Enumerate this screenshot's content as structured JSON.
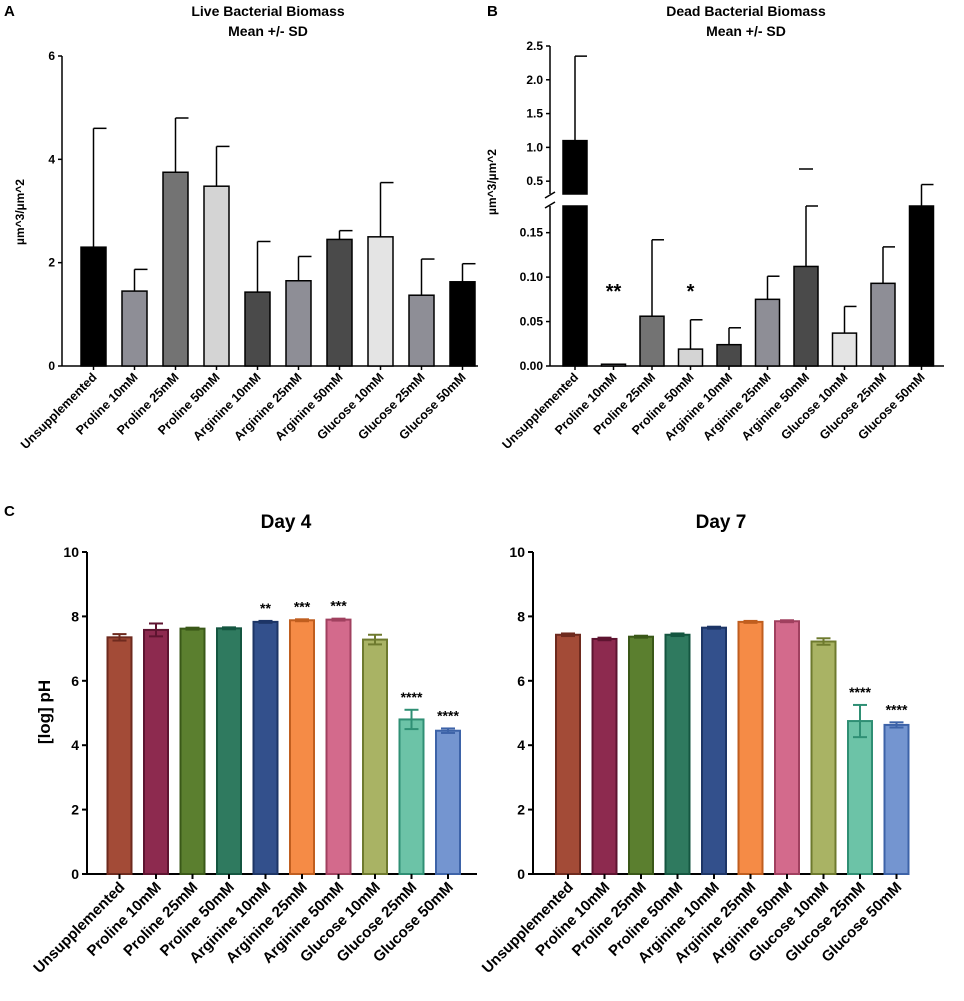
{
  "panels": {
    "A": {
      "letter": "A",
      "title_line1": "Live Bacterial Biomass",
      "title_line2": "Mean +/- SD",
      "ylabel": "µm^3/µm^2"
    },
    "B": {
      "letter": "B",
      "title_line1": "Dead Bacterial Biomass",
      "title_line2": "Mean +/- SD",
      "ylabel": "µm^3/µm^2"
    },
    "C": {
      "letter": "C",
      "ylabel": "[log] pH"
    }
  },
  "chart_data": [
    {
      "id": "A",
      "type": "bar",
      "title": "Live Bacterial Biomass Mean +/- SD",
      "ylabel": "µm^3/µm^2",
      "ylim": [
        0,
        6
      ],
      "yticks": [
        "0",
        "2",
        "4",
        "6"
      ],
      "categories": [
        "Unsupplemented",
        "Proline 10mM",
        "Proline 25mM",
        "Proline 50mM",
        "Arginine 10mM",
        "Arginine 25mM",
        "Arginine 50mM",
        "Glucose 10mM",
        "Glucose 25mM",
        "Glucose 50mM"
      ],
      "values": [
        2.3,
        1.45,
        3.75,
        3.48,
        1.43,
        1.65,
        2.45,
        2.5,
        1.37,
        1.63
      ],
      "errors": [
        2.3,
        0.42,
        1.05,
        0.77,
        0.98,
        0.47,
        0.17,
        1.05,
        0.7,
        0.35
      ],
      "colors": [
        "#000000",
        "#8e8e96",
        "#737373",
        "#d4d4d4",
        "#4a4a4a",
        "#8e8e96",
        "#4a4a4a",
        "#e4e4e4",
        "#8e8e96",
        "#000000"
      ]
    },
    {
      "id": "B",
      "type": "bar",
      "title": "Dead Bacterial Biomass Mean +/- SD",
      "ylabel": "µm^3/µm^2",
      "ylim_lower": [
        0,
        0.18
      ],
      "ylim_upper": [
        0.5,
        2.5
      ],
      "yticks_lower": [
        "0.00",
        "0.05",
        "0.10",
        "0.15"
      ],
      "yticks_upper": [
        "0.5",
        "1.0",
        "1.5",
        "2.0",
        "2.5"
      ],
      "categories": [
        "Unsupplemented",
        "Proline 10mM",
        "Proline 25mM",
        "Proline 50mM",
        "Arginine 10mM",
        "Arginine 25mM",
        "Arginine 50mM",
        "Glucose 10mM",
        "Glucose 25mM",
        "Glucose 50mM"
      ],
      "values": [
        1.1,
        0.002,
        0.056,
        0.019,
        0.024,
        0.075,
        0.112,
        0.037,
        0.093,
        0.23
      ],
      "errors": [
        1.25,
        0.0,
        0.086,
        0.033,
        0.019,
        0.026,
        0.08,
        0.03,
        0.041,
        0.22
      ],
      "colors": [
        "#000000",
        "#8e8e96",
        "#737373",
        "#d4d4d4",
        "#4a4a4a",
        "#8e8e96",
        "#4a4a4a",
        "#e4e4e4",
        "#8e8e96",
        "#000000"
      ],
      "annotations": [
        {
          "category": "Proline 10mM",
          "text": "**"
        },
        {
          "category": "Proline 50mM",
          "text": "*"
        }
      ]
    },
    {
      "id": "C1",
      "type": "bar",
      "title": "Day 4",
      "ylabel": "[log] pH",
      "ylim": [
        0,
        10
      ],
      "yticks": [
        "0",
        "2",
        "4",
        "6",
        "8",
        "10"
      ],
      "categories": [
        "Unsupplemented",
        "Proline 10mM",
        "Proline 25mM",
        "Proline 50mM",
        "Arginine 10mM",
        "Arginine 25mM",
        "Arginine 50mM",
        "Glucose 10mM",
        "Glucose 25mM",
        "Glucose 50mM"
      ],
      "values": [
        7.35,
        7.58,
        7.62,
        7.63,
        7.83,
        7.88,
        7.9,
        7.28,
        4.8,
        4.45
      ],
      "errors": [
        0.1,
        0.2,
        0.03,
        0.03,
        0.03,
        0.03,
        0.03,
        0.15,
        0.3,
        0.07
      ],
      "fills": [
        "#a34b37",
        "#8d2a4f",
        "#5b7f2f",
        "#2f7a5f",
        "#33508c",
        "#f58b46",
        "#d36a8c",
        "#a9b364",
        "#6cc3a7",
        "#7495d0"
      ],
      "strokes": [
        "#6e2a1e",
        "#5e1430",
        "#3a5818",
        "#145640",
        "#1d3566",
        "#c05e1f",
        "#a0405f",
        "#6e7a2e",
        "#2f8f74",
        "#3d63a8"
      ],
      "annotations": [
        "",
        "",
        "",
        "",
        "**",
        "***",
        "***",
        "",
        "****",
        "****"
      ]
    },
    {
      "id": "C2",
      "type": "bar",
      "title": "Day 7",
      "ylim": [
        0,
        10
      ],
      "yticks": [
        "0",
        "2",
        "4",
        "6",
        "8",
        "10"
      ],
      "categories": [
        "Unsupplemented",
        "Proline 10mM",
        "Proline 25mM",
        "Proline 50mM",
        "Arginine 10mM",
        "Arginine 25mM",
        "Arginine 50mM",
        "Glucose 10mM",
        "Glucose 25mM",
        "Glucose 50mM"
      ],
      "values": [
        7.43,
        7.3,
        7.37,
        7.43,
        7.65,
        7.83,
        7.85,
        7.22,
        4.75,
        4.63
      ],
      "errors": [
        0.04,
        0.04,
        0.03,
        0.04,
        0.03,
        0.03,
        0.03,
        0.1,
        0.5,
        0.08
      ],
      "fills": [
        "#a34b37",
        "#8d2a4f",
        "#5b7f2f",
        "#2f7a5f",
        "#33508c",
        "#f58b46",
        "#d36a8c",
        "#a9b364",
        "#6cc3a7",
        "#7495d0"
      ],
      "strokes": [
        "#6e2a1e",
        "#5e1430",
        "#3a5818",
        "#145640",
        "#1d3566",
        "#c05e1f",
        "#a0405f",
        "#6e7a2e",
        "#2f8f74",
        "#3d63a8"
      ],
      "annotations": [
        "",
        "",
        "",
        "",
        "",
        "",
        "",
        "",
        "****",
        "****"
      ]
    }
  ]
}
